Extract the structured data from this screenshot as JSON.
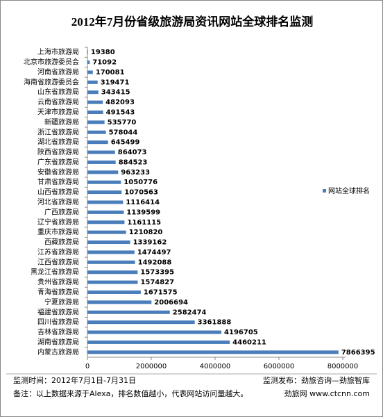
{
  "chart_data": {
    "type": "bar",
    "orientation": "horizontal",
    "title": "2012年7月份省级旅游局资讯网站全球排名监测",
    "categories": [
      "上海市旅游局",
      "北京市旅游委员会",
      "河南省旅游局",
      "海南省旅游委员会",
      "山东省旅游局",
      "云南省旅游局",
      "天津市旅游局",
      "新疆旅游局",
      "浙江省旅游局",
      "湖北省旅游局",
      "陕西省旅游局",
      "广东省旅游局",
      "安徽省旅游局",
      "甘肃省旅游局",
      "山西省旅游局",
      "河北省旅游局",
      "广西旅游局",
      "辽宁省旅游局",
      "重庆市旅游局",
      "西藏旅游局",
      "江苏省旅游局",
      "江西省旅游局",
      "黑龙江省旅游局",
      "贵州省旅游局",
      "青海省旅游局",
      "宁夏旅游局",
      "福建省旅游局",
      "四川省旅游局",
      "吉林省旅游局",
      "湖南省旅游局",
      "内蒙古旅游局"
    ],
    "series": [
      {
        "name": "网站全球排名",
        "color": "#4a7ebb",
        "values": [
          19380,
          71092,
          170081,
          319471,
          343415,
          482093,
          491543,
          535770,
          578044,
          645499,
          864073,
          884523,
          963233,
          1050776,
          1070563,
          1116414,
          1139599,
          1161115,
          1210820,
          1339162,
          1474497,
          1492088,
          1573395,
          1574827,
          1671575,
          2006694,
          2582474,
          3361888,
          4196705,
          4460211,
          7866395
        ]
      }
    ],
    "xlim": [
      0,
      8000000
    ],
    "xticks": [
      0,
      2000000,
      4000000,
      6000000,
      8000000
    ],
    "legend": "right",
    "footer": {
      "left_1": "监测时间：2012年7月1日-7月31日",
      "right_1": "监测发布：劲旅咨询—劲旅智库",
      "left_2": "备注：以上数据来源于Alexa，排名数值越小，代表网站访问量越大。",
      "right_2": "劲旅网 www.ctcnn.com"
    }
  }
}
